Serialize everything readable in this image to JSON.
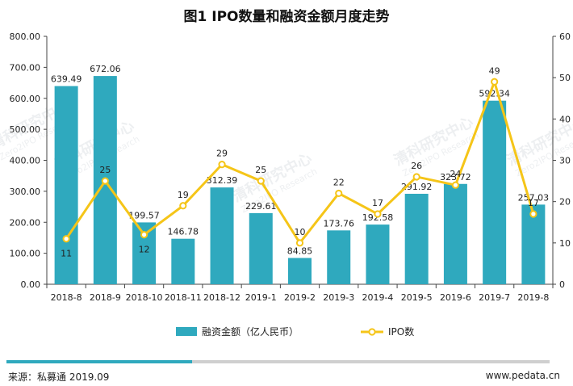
{
  "chart_data": {
    "type": "bar+line",
    "title": "图1 IPO数量和融资金额月度走势",
    "categories": [
      "2018-8",
      "2018-9",
      "2018-10",
      "2018-11",
      "2018-12",
      "2019-1",
      "2019-2",
      "2019-3",
      "2019-4",
      "2019-5",
      "2019-6",
      "2019-7",
      "2019-8"
    ],
    "series": [
      {
        "name": "融资金额（亿人民币）",
        "kind": "bar",
        "axis": "left",
        "values": [
          639.49,
          672.06,
          199.57,
          146.78,
          312.39,
          229.61,
          84.85,
          173.76,
          192.58,
          291.92,
          323.72,
          592.34,
          257.03
        ],
        "labels": [
          "639.49",
          "672.06",
          "199.57",
          "146.78",
          "312.39",
          "229.61",
          "84.85",
          "173.76",
          "192.58",
          "291.92",
          "323.72",
          "592.34",
          "257.03"
        ],
        "color": "#2fa9be"
      },
      {
        "name": "IPO数",
        "kind": "line",
        "axis": "right",
        "values": [
          11,
          25,
          12,
          19,
          29,
          25,
          10,
          22,
          17,
          26,
          24,
          49,
          17
        ],
        "color": "#f5c518"
      }
    ],
    "y_left": {
      "min": 0,
      "max": 800,
      "step": 100,
      "ticks": [
        "0.00",
        "100.00",
        "200.00",
        "300.00",
        "400.00",
        "500.00",
        "600.00",
        "700.00",
        "800.00"
      ]
    },
    "y_right": {
      "min": 0,
      "max": 60,
      "step": 10,
      "ticks": [
        "0",
        "10",
        "20",
        "30",
        "40",
        "50",
        "60"
      ]
    },
    "legend_position": "bottom"
  },
  "watermark": {
    "text_cn": "清科研究中心",
    "text_en": "Zero2IPO Research"
  },
  "footer": {
    "source": "来源：私募通 2019.09",
    "site": "www.pedata.cn"
  }
}
